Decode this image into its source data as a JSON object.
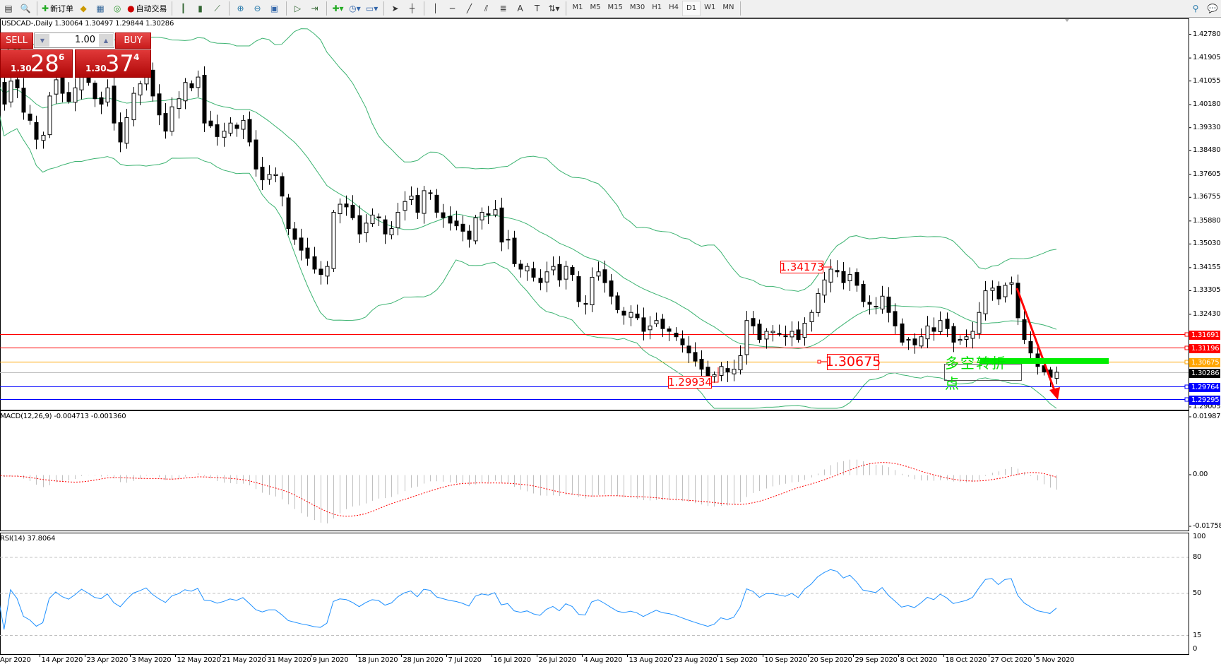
{
  "toolbar": {
    "new_order_label": "新订单",
    "auto_trading_label": "自动交易",
    "timeframes": [
      "M1",
      "M5",
      "M15",
      "M30",
      "H1",
      "H4",
      "D1",
      "W1",
      "MN"
    ],
    "active_timeframe": "D1"
  },
  "chart": {
    "symbol_info": "USDCAD-,Daily  1.30064 1.30497 1.29844 1.30286"
  },
  "trade_panel": {
    "sell_label": "SELL",
    "buy_label": "BUY",
    "lot_value": "1.00",
    "sell_price": {
      "prefix": "1.30",
      "big": "28",
      "sup": "6"
    },
    "buy_price": {
      "prefix": "1.30",
      "big": "37",
      "sup": "4"
    }
  },
  "price_axis": {
    "labels": [
      "1.42780",
      "1.41905",
      "1.41055",
      "1.40180",
      "1.39330",
      "1.38480",
      "1.37605",
      "1.36755",
      "1.35880",
      "1.35030",
      "1.34155",
      "1.33305",
      "1.32430",
      "1.29005"
    ]
  },
  "horizontal_lines": [
    {
      "price": "1.31691",
      "color": "#ff0000"
    },
    {
      "price": "1.31196",
      "color": "#ff0000"
    },
    {
      "price": "1.30675",
      "color": "#ffa500"
    },
    {
      "price": "1.30286",
      "color": "#000000",
      "line_color": "#c0c0c0"
    },
    {
      "price": "1.29764",
      "color": "#0000ff"
    },
    {
      "price": "1.29295",
      "color": "#0000ff"
    }
  ],
  "annotations": {
    "high_label": "1.34173",
    "pivot_label": "1.30675",
    "low_label": "1.29934",
    "turning_point_text": "多空转折点"
  },
  "indicators": {
    "macd_title": "MACD(12,26,9) -0.004713 -0.001360",
    "macd_axis": [
      "0.019878",
      "0.00",
      "-0.017582"
    ],
    "rsi_title": "RSI(14) 37.8064",
    "rsi_axis": [
      "100",
      "80",
      "50",
      "15",
      "0"
    ]
  },
  "colors": {
    "bollinger": "#3cb371",
    "macd_signal": "#ff0000",
    "macd_hist": "#c0c0c0",
    "rsi": "#1e90ff",
    "arrow": "#ff0000",
    "turning_zone": "#00ee00"
  },
  "chart_data": {
    "type": "candlestick",
    "symbol": "USDCAD",
    "timeframe": "Daily",
    "closes": [
      1.4095,
      1.402,
      1.4105,
      1.408,
      1.399,
      1.396,
      1.389,
      1.3905,
      1.405,
      1.411,
      1.406,
      1.403,
      1.408,
      1.415,
      1.41,
      1.404,
      1.402,
      1.408,
      1.395,
      1.388,
      1.397,
      1.406,
      1.4095,
      1.414,
      1.405,
      1.398,
      1.392,
      1.401,
      1.404,
      1.41,
      1.408,
      1.412,
      1.395,
      1.394,
      1.39,
      1.392,
      1.395,
      1.393,
      1.396,
      1.388,
      1.378,
      1.374,
      1.376,
      1.376,
      1.368,
      1.356,
      1.352,
      1.348,
      1.345,
      1.341,
      1.339,
      1.342,
      1.362,
      1.365,
      1.364,
      1.36,
      1.354,
      1.358,
      1.361,
      1.36,
      1.354,
      1.356,
      1.362,
      1.366,
      1.368,
      1.362,
      1.37,
      1.369,
      1.362,
      1.36,
      1.358,
      1.357,
      1.355,
      1.352,
      1.36,
      1.362,
      1.361,
      1.363,
      1.351,
      1.352,
      1.343,
      1.341,
      1.342,
      1.338,
      1.336,
      1.34,
      1.342,
      1.337,
      1.342,
      1.339,
      1.329,
      1.328,
      1.338,
      1.34,
      1.336,
      1.331,
      1.326,
      1.324,
      1.325,
      1.323,
      1.318,
      1.32,
      1.322,
      1.319,
      1.318,
      1.316,
      1.313,
      1.31,
      1.307,
      1.304,
      1.301,
      1.302,
      1.305,
      1.303,
      1.304,
      1.309,
      1.322,
      1.32,
      1.315,
      1.318,
      1.318,
      1.317,
      1.316,
      1.318,
      1.315,
      1.321,
      1.325,
      1.332,
      1.337,
      1.341,
      1.34,
      1.336,
      1.339,
      1.335,
      1.329,
      1.328,
      1.327,
      1.331,
      1.325,
      1.32,
      1.314,
      1.315,
      1.313,
      1.316,
      1.32,
      1.318,
      1.322,
      1.319,
      1.314,
      1.315,
      1.316,
      1.318,
      1.325,
      1.333,
      1.334,
      1.33,
      1.335,
      1.336,
      1.323,
      1.315,
      1.31,
      1.305,
      1.303,
      1.301,
      1.30286
    ],
    "last_bar": {
      "open": 1.30064,
      "high": 1.30497,
      "low": 1.29844,
      "close": 1.30286
    },
    "time_labels": [
      "Apr 2020",
      "14 Apr 2020",
      "23 Apr 2020",
      "3 May 2020",
      "12 May 2020",
      "21 May 2020",
      "31 May 2020",
      "9 Jun 2020",
      "18 Jun 2020",
      "28 Jun 2020",
      "7 Jul 2020",
      "16 Jul 2020",
      "26 Jul 2020",
      "4 Aug 2020",
      "13 Aug 2020",
      "23 Aug 2020",
      "1 Sep 2020",
      "10 Sep 2020",
      "20 Sep 2020",
      "29 Sep 2020",
      "8 Oct 2020",
      "18 Oct 2020",
      "27 Oct 2020",
      "5 Nov 2020"
    ],
    "price_range": [
      1.29005,
      1.4278
    ],
    "indicators": [
      "Bollinger Bands (20,2)",
      "MACD(12,26,9)",
      "RSI(14)"
    ]
  }
}
